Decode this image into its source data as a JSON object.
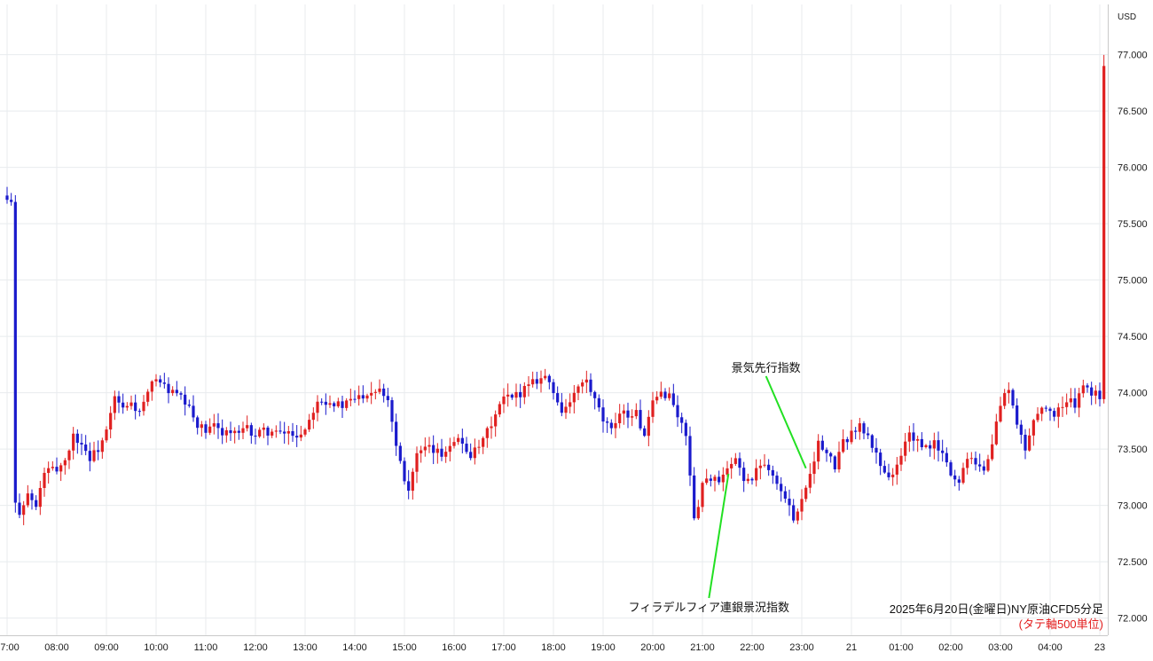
{
  "chart_data": {
    "type": "candlestick",
    "currency_label": "USD",
    "ylim": [
      71.95,
      77.45
    ],
    "y_ticks": [
      "72.000",
      "72.500",
      "73.000",
      "73.500",
      "74.000",
      "74.500",
      "75.000",
      "75.500",
      "76.000",
      "76.500",
      "77.000"
    ],
    "y_tick_values": [
      72.0,
      72.5,
      73.0,
      73.5,
      74.0,
      74.5,
      75.0,
      75.5,
      76.0,
      76.5,
      77.0
    ],
    "x_ticks": [
      "07:00",
      "08:00",
      "09:00",
      "10:00",
      "11:00",
      "12:00",
      "13:00",
      "14:00",
      "15:00",
      "16:00",
      "17:00",
      "18:00",
      "19:00",
      "20:00",
      "21:00",
      "22:00",
      "23:00",
      "21",
      "01:00",
      "02:00",
      "03:00",
      "04:00",
      "23"
    ],
    "x_tick_index": [
      0,
      12,
      24,
      36,
      48,
      60,
      72,
      84,
      96,
      108,
      120,
      132,
      144,
      156,
      168,
      180,
      192,
      204,
      216,
      228,
      240,
      252,
      264
    ],
    "candles_count": 266,
    "gridlines": true,
    "annotations": [
      {
        "text": "景気先行指数",
        "index": 193,
        "price": 73.33
      },
      {
        "text": "フィラデルフィア連銀景況指数",
        "index": 170,
        "price": 73.28
      }
    ],
    "caption": "2025年6月20日(金曜日)NY原油CFD5分足",
    "caption_sub": "(タテ軸500単位)",
    "up_color": "#e02020",
    "down_color": "#1a1acc",
    "keypoints": [
      [
        0,
        75.7
      ],
      [
        1,
        75.68
      ],
      [
        2,
        73.0
      ],
      [
        3,
        72.95
      ],
      [
        5,
        73.1
      ],
      [
        7,
        72.98
      ],
      [
        9,
        73.3
      ],
      [
        12,
        73.32
      ],
      [
        14,
        73.4
      ],
      [
        16,
        73.62
      ],
      [
        18,
        73.55
      ],
      [
        20,
        73.42
      ],
      [
        22,
        73.5
      ],
      [
        24,
        73.65
      ],
      [
        26,
        73.95
      ],
      [
        28,
        73.85
      ],
      [
        30,
        73.9
      ],
      [
        32,
        73.82
      ],
      [
        36,
        74.15
      ],
      [
        38,
        74.05
      ],
      [
        40,
        74.0
      ],
      [
        42,
        73.95
      ],
      [
        44,
        73.85
      ],
      [
        46,
        73.72
      ],
      [
        48,
        73.65
      ],
      [
        50,
        73.7
      ],
      [
        52,
        73.66
      ],
      [
        54,
        73.65
      ],
      [
        56,
        73.63
      ],
      [
        58,
        73.68
      ],
      [
        60,
        73.62
      ],
      [
        62,
        73.66
      ],
      [
        64,
        73.65
      ],
      [
        66,
        73.63
      ],
      [
        68,
        73.65
      ],
      [
        70,
        73.62
      ],
      [
        72,
        73.68
      ],
      [
        75,
        73.95
      ],
      [
        78,
        73.92
      ],
      [
        81,
        73.88
      ],
      [
        84,
        73.95
      ],
      [
        87,
        74.0
      ],
      [
        90,
        74.05
      ],
      [
        92,
        73.95
      ],
      [
        94,
        73.55
      ],
      [
        96,
        73.25
      ],
      [
        97,
        73.15
      ],
      [
        99,
        73.45
      ],
      [
        102,
        73.5
      ],
      [
        105,
        73.45
      ],
      [
        108,
        73.6
      ],
      [
        110,
        73.55
      ],
      [
        112,
        73.45
      ],
      [
        114,
        73.5
      ],
      [
        116,
        73.65
      ],
      [
        118,
        73.8
      ],
      [
        120,
        73.95
      ],
      [
        122,
        73.95
      ],
      [
        124,
        74.0
      ],
      [
        126,
        74.1
      ],
      [
        128,
        74.12
      ],
      [
        130,
        74.15
      ],
      [
        132,
        74.0
      ],
      [
        134,
        73.85
      ],
      [
        136,
        73.9
      ],
      [
        138,
        74.05
      ],
      [
        140,
        74.1
      ],
      [
        142,
        73.92
      ],
      [
        144,
        73.75
      ],
      [
        146,
        73.65
      ],
      [
        148,
        73.85
      ],
      [
        150,
        73.8
      ],
      [
        152,
        73.82
      ],
      [
        154,
        73.6
      ],
      [
        156,
        73.9
      ],
      [
        158,
        74.0
      ],
      [
        160,
        73.98
      ],
      [
        162,
        73.8
      ],
      [
        164,
        73.62
      ],
      [
        165,
        73.3
      ],
      [
        166,
        72.85
      ],
      [
        168,
        73.2
      ],
      [
        170,
        73.25
      ],
      [
        172,
        73.2
      ],
      [
        174,
        73.3
      ],
      [
        176,
        73.4
      ],
      [
        178,
        73.25
      ],
      [
        180,
        73.22
      ],
      [
        182,
        73.38
      ],
      [
        184,
        73.35
      ],
      [
        186,
        73.2
      ],
      [
        188,
        73.05
      ],
      [
        190,
        72.9
      ],
      [
        192,
        73.05
      ],
      [
        194,
        73.3
      ],
      [
        196,
        73.55
      ],
      [
        198,
        73.45
      ],
      [
        200,
        73.35
      ],
      [
        202,
        73.55
      ],
      [
        204,
        73.65
      ],
      [
        206,
        73.7
      ],
      [
        208,
        73.6
      ],
      [
        210,
        73.45
      ],
      [
        212,
        73.3
      ],
      [
        214,
        73.25
      ],
      [
        216,
        73.45
      ],
      [
        218,
        73.65
      ],
      [
        220,
        73.55
      ],
      [
        222,
        73.5
      ],
      [
        224,
        73.55
      ],
      [
        226,
        73.45
      ],
      [
        228,
        73.28
      ],
      [
        230,
        73.2
      ],
      [
        232,
        73.45
      ],
      [
        234,
        73.4
      ],
      [
        236,
        73.3
      ],
      [
        238,
        73.55
      ],
      [
        240,
        73.9
      ],
      [
        242,
        74.05
      ],
      [
        244,
        73.7
      ],
      [
        246,
        73.5
      ],
      [
        248,
        73.75
      ],
      [
        250,
        73.9
      ],
      [
        252,
        73.8
      ],
      [
        254,
        73.85
      ],
      [
        256,
        73.92
      ],
      [
        258,
        73.9
      ],
      [
        260,
        74.05
      ],
      [
        262,
        74.0
      ],
      [
        264,
        73.97
      ],
      [
        265,
        76.9
      ]
    ]
  }
}
